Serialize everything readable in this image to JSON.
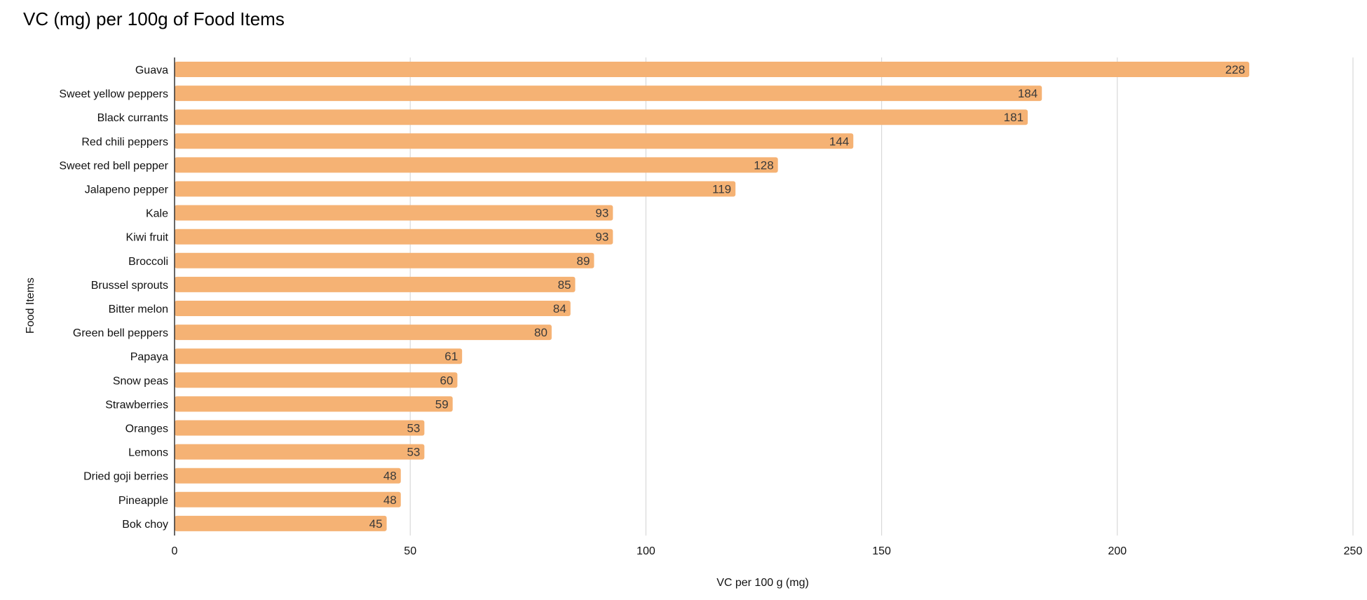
{
  "chart_data": {
    "type": "bar",
    "orientation": "horizontal",
    "title": "VC (mg) per 100g of Food Items",
    "xlabel": "VC per 100 g (mg)",
    "ylabel": "Food Items",
    "xlim": [
      0,
      250
    ],
    "xticks": [
      0,
      50,
      100,
      150,
      200,
      250
    ],
    "grid": true,
    "bar_color": "#F5B274",
    "categories": [
      "Guava",
      "Sweet yellow peppers",
      "Black currants",
      "Red chili peppers",
      "Sweet red bell pepper",
      "Jalapeno pepper",
      "Kale",
      "Kiwi fruit",
      "Broccoli",
      "Brussel sprouts",
      "Bitter melon",
      "Green bell peppers",
      "Papaya",
      "Snow peas",
      "Strawberries",
      "Oranges",
      "Lemons",
      "Dried goji berries",
      "Pineapple",
      "Bok choy"
    ],
    "values": [
      228,
      184,
      181,
      144,
      128,
      119,
      93,
      93,
      89,
      85,
      84,
      80,
      61,
      60,
      59,
      53,
      53,
      48,
      48,
      45
    ]
  }
}
